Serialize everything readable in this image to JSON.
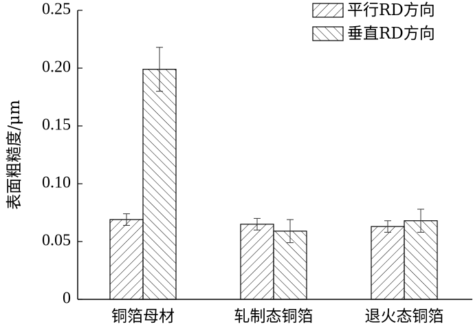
{
  "chart_data": {
    "type": "bar",
    "y_label": "表面粗糙度/μm",
    "categories": [
      "铜箔母材",
      "轧制态铜箔",
      "退火态铜箔"
    ],
    "series": [
      {
        "name": "平行RD方向",
        "color": "#000000",
        "hatch": "/",
        "values": [
          0.069,
          0.065,
          0.063
        ],
        "errors": [
          0.005,
          0.005,
          0.005
        ]
      },
      {
        "name": "垂直RD方向",
        "color": "#000000",
        "hatch": "\\",
        "values": [
          0.199,
          0.059,
          0.068
        ],
        "errors": [
          0.019,
          0.01,
          0.01
        ]
      }
    ],
    "ylim": [
      0,
      0.25
    ],
    "yticks": [
      0,
      {
        "value": 0.05,
        "label": "0.05"
      },
      {
        "value": 0.1,
        "label": "0.10"
      },
      {
        "value": 0.15,
        "label": "0.15"
      },
      {
        "value": 0.2,
        "label": "0.20"
      },
      {
        "value": 0.25,
        "label": "0.25"
      }
    ],
    "legend": "upper right"
  }
}
